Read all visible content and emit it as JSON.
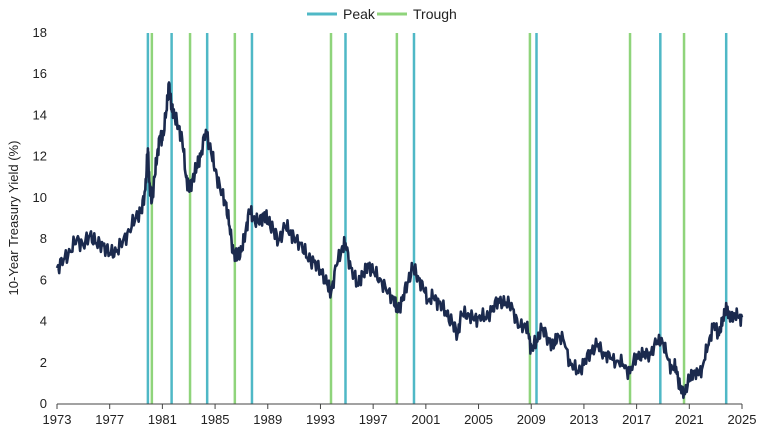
{
  "chart_data": {
    "type": "line",
    "title": "",
    "xlabel": "",
    "ylabel": "10-Year Treasury Yield (%)",
    "xlim": [
      1973,
      2025
    ],
    "ylim": [
      0,
      18
    ],
    "x_ticks": [
      "1973",
      "1977",
      "1981",
      "1985",
      "1989",
      "1993",
      "1997",
      "2001",
      "2005",
      "2009",
      "2013",
      "2017",
      "2021",
      "2025"
    ],
    "y_ticks": [
      "0",
      "2",
      "4",
      "6",
      "8",
      "10",
      "12",
      "14",
      "16",
      "18"
    ],
    "grid": "none",
    "legend_position": "top-center",
    "legend": [
      {
        "label": "Peak",
        "color": "#4fb8c6"
      },
      {
        "label": "Trough",
        "color": "#8fd47b"
      }
    ],
    "series": [
      {
        "color": "#1b2a4e",
        "x": [
          1973.0,
          1973.5,
          1974.0,
          1974.5,
          1975.0,
          1975.5,
          1976.0,
          1976.5,
          1977.0,
          1977.5,
          1978.0,
          1978.5,
          1979.0,
          1979.4,
          1979.7,
          1979.9,
          1980.0,
          1980.2,
          1980.4,
          1980.6,
          1980.8,
          1981.0,
          1981.3,
          1981.5,
          1981.7,
          1981.9,
          1982.2,
          1982.5,
          1982.8,
          1983.0,
          1983.3,
          1983.6,
          1983.9,
          1984.3,
          1984.7,
          1985.0,
          1985.4,
          1985.8,
          1986.1,
          1986.4,
          1986.7,
          1987.0,
          1987.3,
          1987.6,
          1987.9,
          1988.3,
          1988.7,
          1989.0,
          1989.4,
          1989.8,
          1990.3,
          1990.7,
          1991.0,
          1991.5,
          1992.0,
          1992.5,
          1993.0,
          1993.5,
          1993.8,
          1994.2,
          1994.6,
          1994.9,
          1995.3,
          1995.8,
          1996.2,
          1996.6,
          1997.0,
          1997.5,
          1998.0,
          1998.5,
          1998.8,
          1999.2,
          1999.6,
          2000.0,
          2000.4,
          2000.8,
          2001.2,
          2001.6,
          2002.0,
          2002.5,
          2003.0,
          2003.4,
          2003.7,
          2004.2,
          2004.6,
          2005.0,
          2005.5,
          2006.0,
          2006.5,
          2007.0,
          2007.5,
          2008.0,
          2008.5,
          2008.8,
          2009.0,
          2009.4,
          2009.8,
          2010.3,
          2010.7,
          2011.0,
          2011.5,
          2012.0,
          2012.5,
          2013.0,
          2013.5,
          2014.0,
          2014.5,
          2015.0,
          2015.5,
          2016.0,
          2016.5,
          2017.0,
          2017.5,
          2018.0,
          2018.5,
          2018.9,
          2019.3,
          2019.7,
          2020.0,
          2020.3,
          2020.6,
          2021.0,
          2021.3,
          2021.7,
          2022.0,
          2022.4,
          2022.8,
          2023.2,
          2023.5,
          2023.8,
          2024.1,
          2024.4,
          2024.7,
          2025.0
        ],
        "y": [
          6.6,
          7.0,
          7.4,
          8.0,
          7.7,
          8.2,
          7.8,
          7.7,
          7.3,
          7.4,
          7.9,
          8.4,
          9.1,
          9.3,
          10.4,
          12.4,
          10.8,
          9.8,
          11.0,
          12.0,
          13.0,
          12.8,
          14.2,
          15.6,
          14.3,
          14.0,
          13.5,
          12.9,
          11.0,
          10.4,
          10.9,
          11.5,
          12.0,
          13.3,
          12.2,
          11.4,
          10.4,
          9.8,
          8.6,
          7.3,
          7.2,
          7.4,
          8.3,
          9.4,
          9.0,
          8.8,
          9.2,
          8.9,
          8.5,
          7.9,
          8.6,
          8.4,
          8.0,
          7.8,
          7.1,
          6.9,
          6.5,
          5.8,
          5.4,
          6.7,
          7.5,
          7.8,
          6.6,
          5.8,
          6.2,
          6.8,
          6.4,
          6.1,
          5.5,
          5.2,
          4.5,
          5.0,
          5.9,
          6.6,
          6.2,
          5.6,
          5.0,
          5.2,
          4.9,
          4.5,
          3.9,
          3.4,
          4.3,
          4.4,
          4.1,
          4.2,
          4.2,
          4.5,
          5.1,
          4.8,
          4.9,
          3.7,
          3.9,
          3.4,
          2.6,
          3.1,
          3.6,
          3.2,
          2.7,
          3.4,
          3.0,
          1.9,
          1.6,
          1.9,
          2.6,
          2.8,
          2.5,
          2.2,
          2.1,
          1.9,
          1.5,
          2.4,
          2.3,
          2.5,
          2.9,
          3.2,
          2.3,
          1.7,
          1.8,
          0.7,
          0.6,
          1.1,
          1.6,
          1.4,
          1.8,
          2.8,
          3.8,
          3.5,
          3.8,
          4.9,
          4.0,
          4.4,
          4.2,
          4.2
        ]
      }
    ],
    "peaks": [
      1979.9,
      1981.7,
      1984.4,
      1987.8,
      1994.9,
      2000.1,
      2009.4,
      2018.8,
      2023.8
    ],
    "troughs": [
      1980.2,
      1983.1,
      1986.5,
      1993.8,
      1998.8,
      2008.9,
      2016.5,
      2020.6
    ]
  }
}
